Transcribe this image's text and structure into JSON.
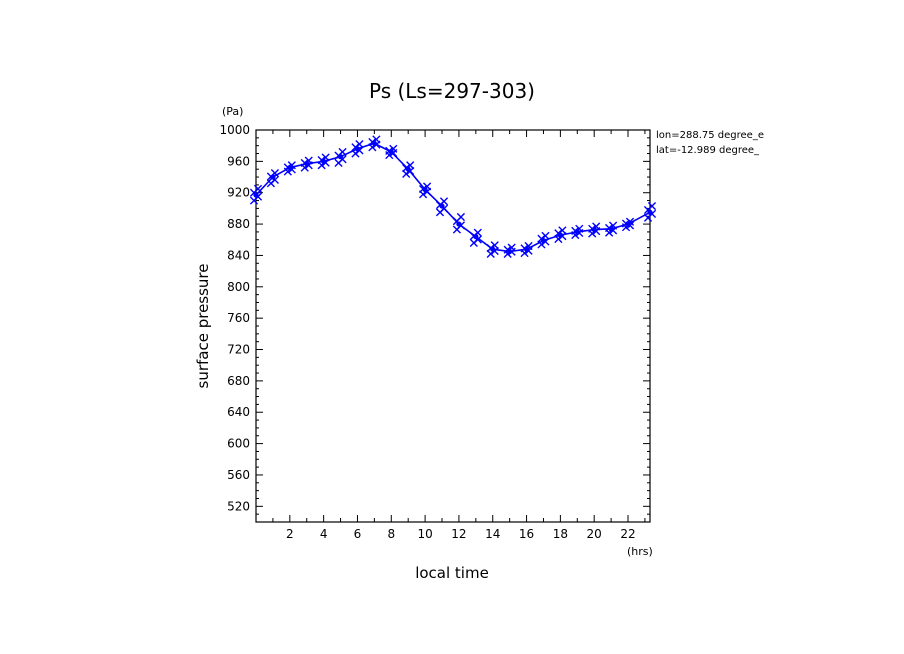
{
  "chart_data": {
    "type": "line",
    "title": "Ps (Ls=297-303)",
    "xlabel": "local time",
    "ylabel": "surface pressure",
    "x_unit": "(hrs)",
    "y_unit": "(Pa)",
    "xlim": [
      0,
      23.3
    ],
    "ylim": [
      500,
      1000
    ],
    "x_ticks": [
      2,
      4,
      6,
      8,
      10,
      12,
      14,
      16,
      18,
      20,
      22
    ],
    "y_ticks": [
      520,
      560,
      600,
      640,
      680,
      720,
      760,
      800,
      840,
      880,
      920,
      960,
      1000
    ],
    "annotations": [
      "lon=288.75 degree_e",
      "lat=-12.989 degree_"
    ],
    "grid": false,
    "series": [
      {
        "x": [
          0,
          1,
          2,
          3,
          4,
          5,
          6,
          7,
          8,
          9,
          10,
          11,
          12,
          13,
          14,
          15,
          16,
          17,
          18,
          19,
          20,
          21,
          22,
          23.3
        ],
        "values": [
          917,
          940,
          952,
          957,
          960,
          966,
          976,
          983,
          972,
          950,
          924,
          903,
          880,
          864,
          848,
          845,
          848,
          859,
          866,
          870,
          873,
          874,
          880,
          895
        ],
        "scatter": [
          [
            910,
            925
          ],
          [
            932,
            945
          ],
          [
            947,
            955
          ],
          [
            952,
            961
          ],
          [
            955,
            965
          ],
          [
            958,
            972
          ],
          [
            970,
            982
          ],
          [
            978,
            988
          ],
          [
            968,
            976
          ],
          [
            944,
            955
          ],
          [
            918,
            928
          ],
          [
            895,
            909
          ],
          [
            873,
            889
          ],
          [
            856,
            869
          ],
          [
            842,
            853
          ],
          [
            842,
            850
          ],
          [
            843,
            852
          ],
          [
            854,
            865
          ],
          [
            861,
            872
          ],
          [
            866,
            874
          ],
          [
            868,
            877
          ],
          [
            869,
            878
          ],
          [
            876,
            883
          ],
          [
            888,
            903
          ]
        ]
      }
    ],
    "colors": {
      "series": "#0000ff",
      "axis": "#000000"
    }
  }
}
